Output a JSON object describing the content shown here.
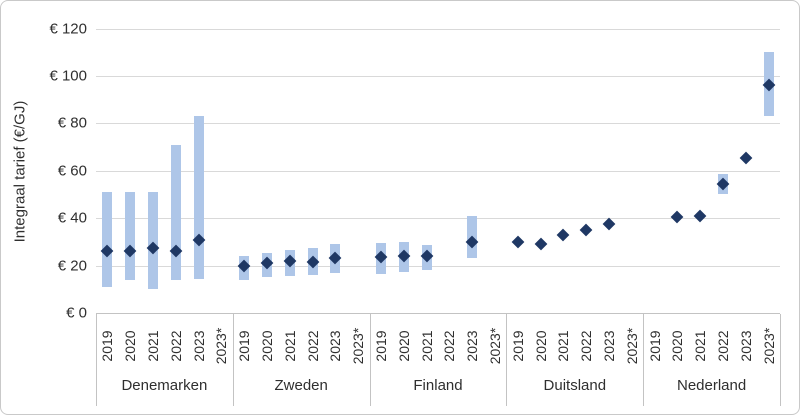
{
  "chart_data": {
    "type": "bar",
    "subtype": "range-bars-with-diamond-markers",
    "title": "",
    "ylabel": "Integraal tarief (€/GJ)",
    "ylim": [
      0,
      120
    ],
    "grid": true,
    "legend": "none",
    "yticks": [
      {
        "value": 120,
        "label": "€ 120"
      },
      {
        "value": 100,
        "label": "€ 100"
      },
      {
        "value": 80,
        "label": "€ 80"
      },
      {
        "value": 60,
        "label": "€ 60"
      },
      {
        "value": 40,
        "label": "€ 40"
      },
      {
        "value": 20,
        "label": "€ 20"
      },
      {
        "value": 0,
        "label": "€ 0"
      }
    ],
    "marker_color": "#1f3864",
    "range_bar_color": "#aec6e8",
    "groups": [
      {
        "country": "Denemarken",
        "points": [
          {
            "year": "2019",
            "low": 11,
            "high": 51,
            "value": 26
          },
          {
            "year": "2020",
            "low": 14,
            "high": 51,
            "value": 26
          },
          {
            "year": "2021",
            "low": 10,
            "high": 51,
            "value": 27.5
          },
          {
            "year": "2022",
            "low": 14,
            "high": 71,
            "value": 26
          },
          {
            "year": "2023",
            "low": 14.5,
            "high": 83,
            "value": 31
          },
          {
            "year": "2023*",
            "low": null,
            "high": null,
            "value": null
          }
        ]
      },
      {
        "country": "Zweden",
        "points": [
          {
            "year": "2019",
            "low": 14,
            "high": 24,
            "value": 20
          },
          {
            "year": "2020",
            "low": 15,
            "high": 25.5,
            "value": 21
          },
          {
            "year": "2021",
            "low": 15.5,
            "high": 26.5,
            "value": 22
          },
          {
            "year": "2022",
            "low": 16,
            "high": 27.5,
            "value": 21.5
          },
          {
            "year": "2023",
            "low": 17,
            "high": 29,
            "value": 23
          },
          {
            "year": "2023*",
            "low": null,
            "high": null,
            "value": null
          }
        ]
      },
      {
        "country": "Finland",
        "points": [
          {
            "year": "2019",
            "low": 16.5,
            "high": 29.5,
            "value": 23.5
          },
          {
            "year": "2020",
            "low": 17.5,
            "high": 30,
            "value": 24
          },
          {
            "year": "2021",
            "low": 18,
            "high": 28.5,
            "value": 24
          },
          {
            "year": "2022",
            "low": null,
            "high": null,
            "value": null
          },
          {
            "year": "2023",
            "low": 23,
            "high": 41,
            "value": 30
          },
          {
            "year": "2023*",
            "low": null,
            "high": null,
            "value": null
          }
        ]
      },
      {
        "country": "Duitsland",
        "points": [
          {
            "year": "2019",
            "low": null,
            "high": null,
            "value": 30
          },
          {
            "year": "2020",
            "low": null,
            "high": null,
            "value": 29
          },
          {
            "year": "2021",
            "low": null,
            "high": null,
            "value": 33
          },
          {
            "year": "2022",
            "low": null,
            "high": null,
            "value": 35
          },
          {
            "year": "2023",
            "low": null,
            "high": null,
            "value": 37.5
          },
          {
            "year": "2023*",
            "low": null,
            "high": null,
            "value": null
          }
        ]
      },
      {
        "country": "Nederland",
        "points": [
          {
            "year": "2019",
            "low": null,
            "high": null,
            "value": null
          },
          {
            "year": "2020",
            "low": null,
            "high": null,
            "value": 40.5
          },
          {
            "year": "2021",
            "low": null,
            "high": null,
            "value": 41
          },
          {
            "year": "2022",
            "low": 50,
            "high": 58.5,
            "value": 54.5
          },
          {
            "year": "2023",
            "low": null,
            "high": null,
            "value": 65.5
          },
          {
            "year": "2023*",
            "low": 83,
            "high": 110,
            "value": 96
          }
        ]
      }
    ]
  }
}
